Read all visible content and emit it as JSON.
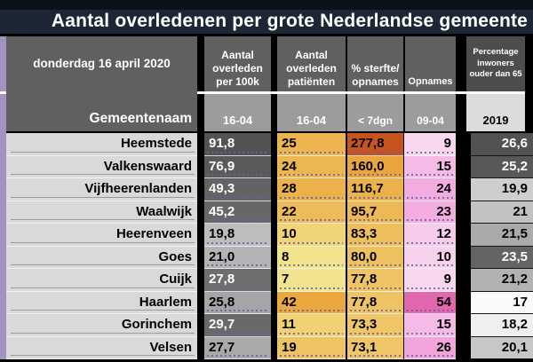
{
  "title": "Aantal overledenen per grote Nederlandse gemeente",
  "colors": {
    "title_bg": "#1c2634",
    "accent_strip": "#a393c1",
    "header_box_bg": "#606060",
    "subheader_bg": "#9c9c9c",
    "subheader_2019_bg": "#dcdcdc",
    "name_cell_bg": "#d9d9d9",
    "dotted_underline": "#6c5da3",
    "scale_orange_max": "#c5541e",
    "scale_pink_max": "#e167ae"
  },
  "header": {
    "date_label": "donderdag 16 april 2020",
    "name_column_label": "Gemeentenaam",
    "columns": [
      {
        "label": "Aantal overleden per 100k",
        "sub": "16-04"
      },
      {
        "label": "Aantal overleden patiënten",
        "sub": "16-04"
      },
      {
        "label": "% sterfte/ opnames",
        "sub": "< 7dgn"
      },
      {
        "label": "Opnames",
        "sub": "09-04"
      },
      {
        "label": "Percentage inwoners ouder dan 65",
        "sub": "2019"
      }
    ]
  },
  "table": {
    "rows": [
      {
        "name": "Heemstede",
        "per100k": {
          "text": "91,8",
          "bg": "#535353",
          "fg": "#ffffff"
        },
        "deaths": {
          "text": "25",
          "bg": "#ecb550",
          "fg": "#000000"
        },
        "sterfte": {
          "text": "277,8",
          "bg": "#c5541e",
          "fg": "#000000"
        },
        "opnames": {
          "text": "9",
          "bg": "#f9d8ef",
          "fg": "#000000"
        },
        "pct65": {
          "text": "26,6",
          "bg": "#525252",
          "fg": "#ffffff"
        }
      },
      {
        "name": "Valkenswaard",
        "per100k": {
          "text": "76,9",
          "bg": "#5a5a5a",
          "fg": "#ffffff"
        },
        "deaths": {
          "text": "24",
          "bg": "#ecb753",
          "fg": "#000000"
        },
        "sterfte": {
          "text": "160,0",
          "bg": "#e9a53e",
          "fg": "#000000"
        },
        "opnames": {
          "text": "15",
          "bg": "#f5bae5",
          "fg": "#000000"
        },
        "pct65": {
          "text": "25,2",
          "bg": "#585858",
          "fg": "#ffffff"
        }
      },
      {
        "name": "Vijfheerenlanden",
        "per100k": {
          "text": "49,3",
          "bg": "#636363",
          "fg": "#ffffff"
        },
        "deaths": {
          "text": "28",
          "bg": "#ebb14a",
          "fg": "#000000"
        },
        "sterfte": {
          "text": "116,7",
          "bg": "#ebb24b",
          "fg": "#000000"
        },
        "opnames": {
          "text": "24",
          "bg": "#f3abe0",
          "fg": "#000000"
        },
        "pct65": {
          "text": "19,9",
          "bg": "#cecece",
          "fg": "#000000"
        }
      },
      {
        "name": "Waalwijk",
        "per100k": {
          "text": "45,2",
          "bg": "#676767",
          "fg": "#ffffff"
        },
        "deaths": {
          "text": "22",
          "bg": "#edbb59",
          "fg": "#000000"
        },
        "sterfte": {
          "text": "95,7",
          "bg": "#ecb955",
          "fg": "#000000"
        },
        "opnames": {
          "text": "23",
          "bg": "#f4ade1",
          "fg": "#000000"
        },
        "pct65": {
          "text": "21",
          "bg": "#c2c2c2",
          "fg": "#000000"
        }
      },
      {
        "name": "Heerenveen",
        "per100k": {
          "text": "19,8",
          "bg": "#bdbdbd",
          "fg": "#000000"
        },
        "deaths": {
          "text": "10",
          "bg": "#f0d477",
          "fg": "#000000"
        },
        "sterfte": {
          "text": "83,3",
          "bg": "#edbf5d",
          "fg": "#000000"
        },
        "opnames": {
          "text": "12",
          "bg": "#f7cceb",
          "fg": "#000000"
        },
        "pct65": {
          "text": "21,5",
          "bg": "#aaaaaa",
          "fg": "#000000"
        }
      },
      {
        "name": "Goes",
        "per100k": {
          "text": "21,0",
          "bg": "#b4b4b4",
          "fg": "#000000"
        },
        "deaths": {
          "text": "8",
          "bg": "#f2e28b",
          "fg": "#000000"
        },
        "sterfte": {
          "text": "80,0",
          "bg": "#edc160",
          "fg": "#000000"
        },
        "opnames": {
          "text": "10",
          "bg": "#f8d2ed",
          "fg": "#000000"
        },
        "pct65": {
          "text": "23,5",
          "bg": "#646464",
          "fg": "#ffffff"
        }
      },
      {
        "name": "Cuijk",
        "per100k": {
          "text": "27,8",
          "bg": "#6e6e6e",
          "fg": "#ffffff"
        },
        "deaths": {
          "text": "7",
          "bg": "#f2e48f",
          "fg": "#000000"
        },
        "sterfte": {
          "text": "77,8",
          "bg": "#edc363",
          "fg": "#000000"
        },
        "opnames": {
          "text": "9",
          "bg": "#f9d8ef",
          "fg": "#000000"
        },
        "pct65": {
          "text": "21,2",
          "bg": "#b2b2b2",
          "fg": "#000000"
        }
      },
      {
        "name": "Haarlem",
        "per100k": {
          "text": "25,8",
          "bg": "#a5a5a5",
          "fg": "#000000"
        },
        "deaths": {
          "text": "42",
          "bg": "#eaa83e",
          "fg": "#000000"
        },
        "sterfte": {
          "text": "77,8",
          "bg": "#edc363",
          "fg": "#000000"
        },
        "opnames": {
          "text": "54",
          "bg": "#e167ae",
          "fg": "#000000"
        },
        "pct65": {
          "text": "17",
          "bg": "#fafafa",
          "fg": "#000000"
        }
      },
      {
        "name": "Gorinchem",
        "per100k": {
          "text": "29,7",
          "bg": "#696969",
          "fg": "#ffffff"
        },
        "deaths": {
          "text": "11",
          "bg": "#f0d275",
          "fg": "#000000"
        },
        "sterfte": {
          "text": "73,3",
          "bg": "#eec668",
          "fg": "#000000"
        },
        "opnames": {
          "text": "15",
          "bg": "#f5bae5",
          "fg": "#000000"
        },
        "pct65": {
          "text": "18,2",
          "bg": "#efefef",
          "fg": "#000000"
        }
      },
      {
        "name": "Velsen",
        "per100k": {
          "text": "27,7",
          "bg": "#a9a9a9",
          "fg": "#000000"
        },
        "deaths": {
          "text": "19",
          "bg": "#eec364",
          "fg": "#000000"
        },
        "sterfte": {
          "text": "73,1",
          "bg": "#eec669",
          "fg": "#000000"
        },
        "opnames": {
          "text": "26",
          "bg": "#f2a5dd",
          "fg": "#000000"
        },
        "pct65": {
          "text": "20,1",
          "bg": "#c7c7c7",
          "fg": "#000000"
        }
      }
    ]
  },
  "chart_data": {
    "type": "table",
    "title": "Aantal overledenen per grote Nederlandse gemeente",
    "date_label": "donderdag 16 april 2020",
    "columns": [
      "Gemeentenaam",
      "Aantal overleden per 100k (16-04)",
      "Aantal overleden patiënten (16-04)",
      "% sterfte/opnames (< 7dgn)",
      "Opnames (09-04)",
      "Percentage inwoners ouder dan 65 (2019)"
    ],
    "rows": [
      [
        "Heemstede",
        91.8,
        25,
        277.8,
        9,
        26.6
      ],
      [
        "Valkenswaard",
        76.9,
        24,
        160.0,
        15,
        25.2
      ],
      [
        "Vijfheerenlanden",
        49.3,
        28,
        116.7,
        24,
        19.9
      ],
      [
        "Waalwijk",
        45.2,
        22,
        95.7,
        23,
        21
      ],
      [
        "Heerenveen",
        19.8,
        10,
        83.3,
        12,
        21.5
      ],
      [
        "Goes",
        21.0,
        8,
        80.0,
        10,
        23.5
      ],
      [
        "Cuijk",
        27.8,
        7,
        77.8,
        9,
        21.2
      ],
      [
        "Haarlem",
        25.8,
        42,
        77.8,
        54,
        17
      ],
      [
        "Gorinchem",
        29.7,
        11,
        73.3,
        15,
        18.2
      ],
      [
        "Velsen",
        27.7,
        19,
        73.1,
        26,
        20.1
      ]
    ],
    "layout_hints": {
      "conditional_formatting": {
        "per100k": "gray scale, darker = higher",
        "deaths": "yellow-to-orange scale, darker = higher",
        "sterfte_pct": "gold-to-burnt-orange scale, darker = higher",
        "opnames": "pale-pink-to-magenta scale, darker = higher",
        "pct65": "white-to-dark-gray scale, darker = higher"
      }
    }
  }
}
